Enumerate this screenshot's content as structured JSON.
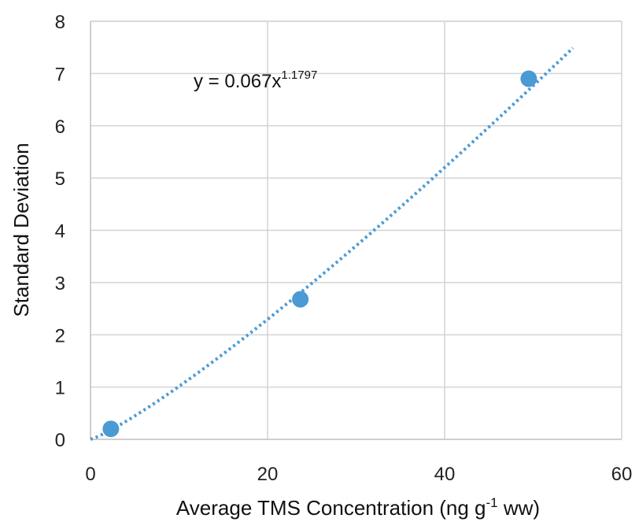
{
  "chart_data": {
    "type": "scatter",
    "title": "",
    "xlabel": {
      "main": "Average TMS Concentration (ng g",
      "sup": "-1",
      "tail": " ww)"
    },
    "ylabel": "Standard Deviation",
    "xlim": [
      0,
      60
    ],
    "ylim": [
      0,
      8
    ],
    "x_ticks": [
      0,
      20,
      40,
      60
    ],
    "y_ticks": [
      0,
      1,
      2,
      3,
      4,
      5,
      6,
      7,
      8
    ],
    "grid": true,
    "points": [
      {
        "x": 2.3,
        "y": 0.2
      },
      {
        "x": 23.7,
        "y": 2.68
      },
      {
        "x": 49.5,
        "y": 6.9
      }
    ],
    "trendline": {
      "type": "power",
      "coefficient": 0.067,
      "exponent": 1.1797,
      "x_range": [
        0,
        54.5
      ],
      "label_prefix": "y = 0.067x",
      "label_exponent": "1.1797"
    },
    "colors": {
      "marker": "#4a9ad4",
      "trendline": "#4a9ad4",
      "grid": "#d4d4d4",
      "axis": "#bfbfbf"
    }
  }
}
